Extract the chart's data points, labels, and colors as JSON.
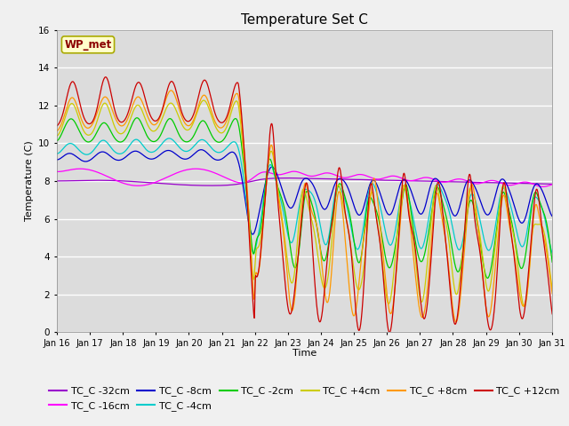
{
  "title": "Temperature Set C",
  "xlabel": "Time",
  "ylabel": "Temperature (C)",
  "ylim": [
    0,
    16
  ],
  "yticks": [
    0,
    2,
    4,
    6,
    8,
    10,
    12,
    14,
    16
  ],
  "x_labels": [
    "Jan 16",
    "Jan 17",
    "Jan 18",
    "Jan 19",
    "Jan 20",
    "Jan 21",
    "Jan 22",
    "Jan 23",
    "Jan 24",
    "Jan 25",
    "Jan 26",
    "Jan 27",
    "Jan 28",
    "Jan 29",
    "Jan 30",
    "Jan 31"
  ],
  "wp_met_label": "WP_met",
  "series_colors": {
    "TC_C -32cm": "#9900cc",
    "TC_C -16cm": "#ff00ff",
    "TC_C -8cm": "#0000cc",
    "TC_C -4cm": "#00cccc",
    "TC_C -2cm": "#00cc00",
    "TC_C +4cm": "#cccc00",
    "TC_C +8cm": "#ff9900",
    "TC_C +12cm": "#cc0000"
  },
  "plot_bg_color": "#dcdcdc",
  "fig_bg_color": "#f0f0f0",
  "title_fontsize": 11,
  "legend_fontsize": 8,
  "tick_fontsize": 7
}
